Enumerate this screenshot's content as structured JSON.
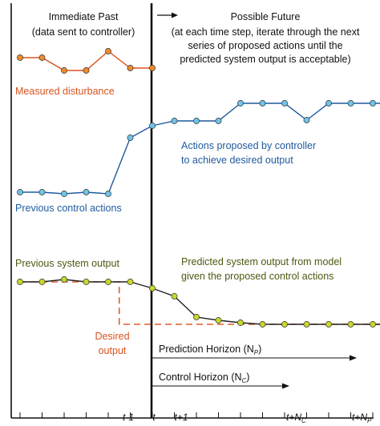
{
  "colors": {
    "disturbance": "#d9531e",
    "disturbance_dot": "#f08a2c",
    "control": "#1f5a9e",
    "control_dot": "#6fc3e8",
    "output_dot": "#c9d62b",
    "output_text": "#4c5a12",
    "desired": "#e05a2a",
    "axis": "#111111"
  },
  "past": {
    "title": "Immediate Past",
    "subtitle": "(data sent to controller)"
  },
  "future": {
    "title": "Possible Future",
    "lines": [
      "(at each time step, iterate through the next",
      "series of proposed actions until the",
      "predicted system output is acceptable)"
    ]
  },
  "labels": {
    "measured_disturbance": "Measured disturbance",
    "actions_line1": "Actions proposed by controller",
    "actions_line2": "to achieve desired output",
    "previous_control": "Previous control actions",
    "previous_output": "Previous system output",
    "predicted_line1": "Predicted system output from model",
    "predicted_line2": "given the proposed control actions",
    "desired_line1": "Desired",
    "desired_line2": "output",
    "prediction_horizon": "Prediction Horizon (N",
    "prediction_horizon_sub": "P",
    "control_horizon": "Control Horizon (N",
    "control_horizon_sub": "C",
    "close_paren": ")"
  },
  "axis": {
    "tick_t_minus_1": "t-1",
    "tick_t": "t",
    "tick_t_plus_1": "t+1",
    "tick_t_plus_nc": "t+N",
    "tick_t_plus_nc_sub": "C",
    "tick_t_plus_np": "t+N",
    "tick_t_plus_np_sub": "P"
  },
  "series": {
    "disturbance": [
      72,
      72,
      88,
      88,
      64,
      85,
      85
    ],
    "control": [
      240,
      240,
      242,
      240,
      242,
      172,
      157,
      151,
      151,
      151,
      129,
      129,
      129,
      150,
      129,
      129,
      129,
      129
    ],
    "output": [
      352,
      352,
      349,
      352,
      352,
      352,
      360,
      370,
      396,
      400,
      403,
      405,
      405,
      405,
      405,
      405,
      405,
      405
    ],
    "desired": [
      352,
      352,
      352,
      352,
      352,
      405,
      405,
      405,
      405,
      405,
      405,
      405,
      405,
      405,
      405,
      405,
      405,
      405
    ]
  }
}
